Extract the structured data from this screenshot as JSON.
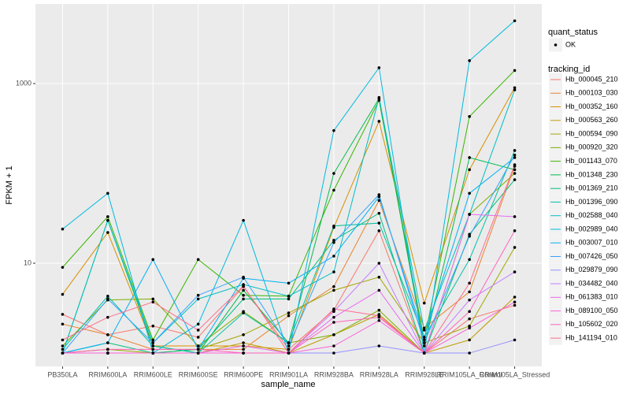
{
  "chart_data": {
    "type": "line",
    "x_label": "sample_name",
    "y_label": "FPKM + 1",
    "categories": [
      "PB350LA",
      "RRIM600LA",
      "RRIM600LE",
      "RRIM600SE",
      "RRIM600PE",
      "RRIM901LA",
      "RRIM928BA",
      "RRIM928LA",
      "RRIM928LE",
      "RRIM105LA_Control",
      "RRIM105LA_Stressed"
    ],
    "log_y": true,
    "ylim": [
      0.71,
      7700
    ],
    "yticks": [
      10,
      1000
    ],
    "grid": true,
    "point_legend": {
      "title": "quant_status",
      "items": [
        "OK"
      ]
    },
    "legend_title": "tracking_id",
    "legend_position": "right",
    "series": [
      {
        "name": "Hb_000045_210",
        "color": "#F8766D",
        "values": [
          2.7,
          1.6,
          2.0,
          1.5,
          5.5,
          1.1,
          3.0,
          23,
          1.0,
          2.4,
          3.4
        ]
      },
      {
        "name": "Hb_000103_030",
        "color": "#EA8331",
        "values": [
          2.1,
          1.6,
          1.1,
          1.1,
          1.1,
          2.6,
          5.5,
          50,
          1.9,
          4.8,
          120
        ]
      },
      {
        "name": "Hb_000352_160",
        "color": "#D89000",
        "values": [
          4.5,
          22,
          1.2,
          1.2,
          1.2,
          1.1,
          25,
          380,
          3.6,
          110,
          900
        ]
      },
      {
        "name": "Hb_000563_260",
        "color": "#C09B00",
        "values": [
          1.0,
          1.0,
          1.0,
          1.0,
          1.3,
          1.0,
          1.6,
          2.7,
          1.0,
          1.4,
          4.2
        ]
      },
      {
        "name": "Hb_000594_090",
        "color": "#A3A500",
        "values": [
          1.0,
          1.1,
          1.0,
          1.1,
          1.6,
          2.8,
          5.0,
          7.0,
          1.3,
          2.0,
          15
        ]
      },
      {
        "name": "Hb_000920_320",
        "color": "#7CAE00",
        "values": [
          1.2,
          3.9,
          4.0,
          1.2,
          2.9,
          1.3,
          1.6,
          3.0,
          1.0,
          35,
          100
        ]
      },
      {
        "name": "Hb_001143_070",
        "color": "#39B600",
        "values": [
          9.0,
          33,
          1.4,
          11,
          4.4,
          4.3,
          65,
          650,
          1.4,
          430,
          1400
        ]
      },
      {
        "name": "Hb_001348_230",
        "color": "#00BB4E",
        "values": [
          1.0,
          30,
          1.2,
          1.0,
          5.0,
          1.3,
          100,
          680,
          1.2,
          150,
          110
        ]
      },
      {
        "name": "Hb_001369_210",
        "color": "#00BF7D",
        "values": [
          1.0,
          1.3,
          1.0,
          1.1,
          4.0,
          4.0,
          18,
          36,
          1.0,
          21,
          85
        ]
      },
      {
        "name": "Hb_001396_090",
        "color": "#00C1A3",
        "values": [
          1.1,
          4.3,
          1.2,
          1.0,
          2.8,
          1.3,
          26,
          28,
          1.5,
          11,
          180
        ]
      },
      {
        "name": "Hb_002588_040",
        "color": "#00BFC4",
        "values": [
          1.0,
          30,
          1.3,
          4.0,
          5.8,
          4.3,
          8.0,
          700,
          1.8,
          35,
          850
        ]
      },
      {
        "name": "Hb_002989_040",
        "color": "#00BAE0",
        "values": [
          24,
          60,
          1.0,
          2.1,
          30,
          1.0,
          300,
          1500,
          1.0,
          1800,
          5000
        ]
      },
      {
        "name": "Hb_003007_010",
        "color": "#00B0F6",
        "values": [
          1.0,
          1.3,
          11,
          1.1,
          6.8,
          6.0,
          12,
          55,
          1.5,
          60,
          150
        ]
      },
      {
        "name": "Hb_007426_050",
        "color": "#35A2FF",
        "values": [
          1.0,
          4.0,
          1.3,
          4.4,
          7.0,
          1.2,
          17,
          58,
          1.3,
          20,
          160
        ]
      },
      {
        "name": "Hb_029879_090",
        "color": "#9590FF",
        "values": [
          1.0,
          1.0,
          1.0,
          1.0,
          1.0,
          1.0,
          1.0,
          1.2,
          1.0,
          1.0,
          1.4
        ]
      },
      {
        "name": "Hb_034482_040",
        "color": "#C77CFF",
        "values": [
          1.0,
          1.0,
          1.0,
          1.0,
          1.0,
          1.0,
          2.9,
          10,
          1.0,
          3.9,
          8.0
        ]
      },
      {
        "name": "Hb_061383_010",
        "color": "#E76BF3",
        "values": [
          1.0,
          1.0,
          1.0,
          1.0,
          1.2,
          1.0,
          2.5,
          5.0,
          1.0,
          35,
          33
        ]
      },
      {
        "name": "Hb_089100_050",
        "color": "#FA62DB",
        "values": [
          1.0,
          1.0,
          1.0,
          1.0,
          1.0,
          1.0,
          1.2,
          2.3,
          1.0,
          1.9,
          3.7
        ]
      },
      {
        "name": "Hb_105602_020",
        "color": "#FF62BC",
        "values": [
          1.0,
          1.1,
          1.1,
          1.1,
          1.0,
          1.0,
          2.2,
          2.5,
          1.0,
          2.9,
          23
        ]
      },
      {
        "name": "Hb_141194_010",
        "color": "#FF6C91",
        "values": [
          1.4,
          2.5,
          3.7,
          1.8,
          5.6,
          1.0,
          3.1,
          2.6,
          1.0,
          6.0,
          125
        ]
      }
    ]
  }
}
